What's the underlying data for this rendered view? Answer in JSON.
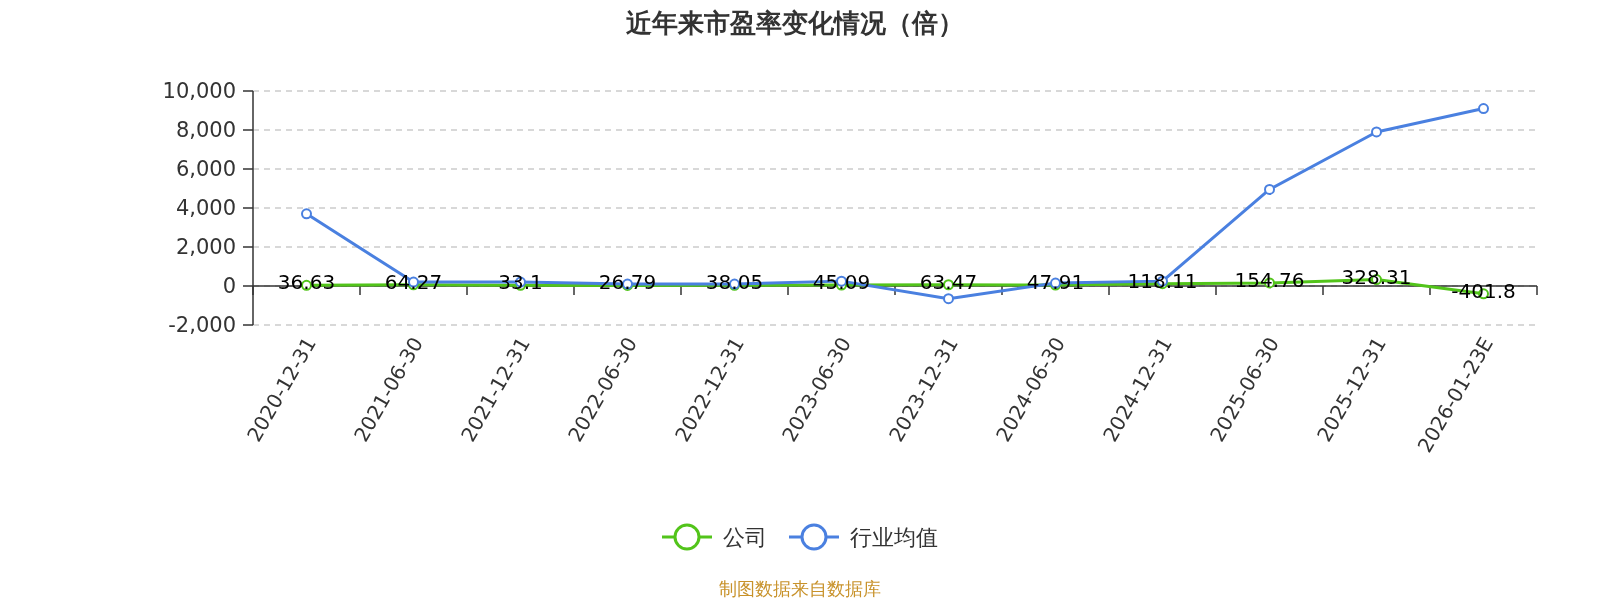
{
  "chart_data": {
    "type": "line",
    "title": "近年来市盈率变化情况（倍）",
    "categories": [
      "2020-12-31",
      "2021-06-30",
      "2021-12-31",
      "2022-06-30",
      "2022-12-31",
      "2023-06-30",
      "2023-12-31",
      "2024-06-30",
      "2024-12-31",
      "2025-06-30",
      "2025-12-31",
      "2026-01-23E"
    ],
    "series": [
      {
        "name": "公司",
        "color": "#52c41a",
        "values": [
          36.63,
          64.27,
          33.1,
          26.79,
          38.05,
          45.09,
          63.47,
          47.91,
          118.11,
          154.76,
          328.31,
          -401.8
        ],
        "value_labels": [
          "36.63",
          "64.27",
          "33.1",
          "26.79",
          "38.05",
          "45.09",
          "63.47",
          "47.91",
          "118.11",
          "154.76",
          "328.31",
          "-401.8"
        ]
      },
      {
        "name": "行业均值",
        "color": "#4a80e0",
        "values": [
          3700,
          200,
          200,
          100,
          100,
          250,
          -650,
          150,
          250,
          4950,
          7900,
          9100
        ]
      }
    ],
    "ylim": [
      -2000,
      10000
    ],
    "yticks": [
      {
        "value": -2000,
        "label": "-2,000"
      },
      0,
      {
        "value": 2000,
        "label": "2,000"
      },
      {
        "value": 4000,
        "label": "4,000"
      },
      {
        "value": 6000,
        "label": "6,000"
      },
      {
        "value": 8000,
        "label": "8,000"
      },
      {
        "value": 10000,
        "label": "10,000"
      }
    ],
    "grid": "y",
    "legend": "bottom",
    "marker": "circle",
    "line_style": "solid",
    "annotations": [
      "制图数据来自数据库"
    ]
  }
}
